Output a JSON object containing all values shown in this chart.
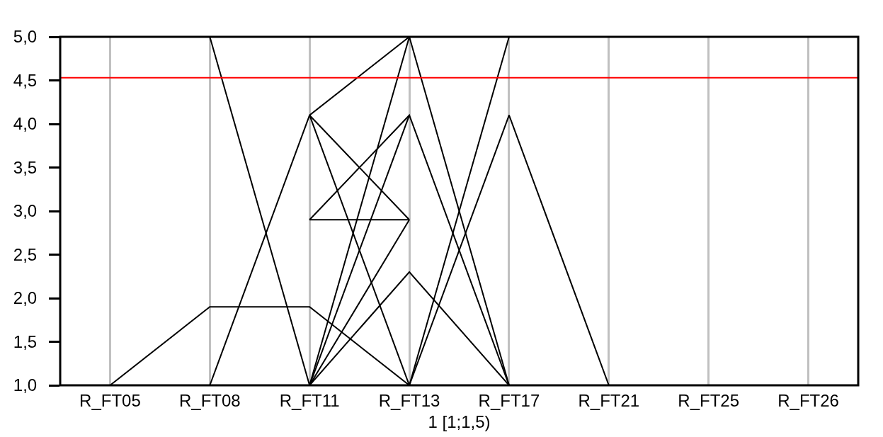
{
  "chart_data": {
    "type": "line",
    "categories": [
      "R_FT05",
      "R_FT08",
      "R_FT11",
      "R_FT13",
      "R_FT17",
      "R_FT21",
      "R_FT25",
      "R_FT26"
    ],
    "xlabel": "1 [1;1,5)",
    "series": [
      {
        "color": "#000000",
        "values": [
          1.0,
          1.9,
          1.9,
          1.0,
          5.0,
          null,
          null,
          null
        ]
      },
      {
        "color": "#000000",
        "values": [
          null,
          5.0,
          1.0,
          5.0,
          1.0,
          null,
          null,
          null
        ]
      },
      {
        "color": "#000000",
        "values": [
          null,
          1.0,
          4.1,
          5.0,
          null,
          null,
          null,
          null
        ]
      },
      {
        "color": "#000000",
        "values": [
          null,
          null,
          4.1,
          1.0,
          4.1,
          1.0,
          null,
          null
        ]
      },
      {
        "color": "#000000",
        "values": [
          null,
          null,
          4.1,
          2.9,
          null,
          null,
          null,
          null
        ]
      },
      {
        "color": "#000000",
        "values": [
          null,
          null,
          2.9,
          4.1,
          1.0,
          null,
          null,
          null
        ]
      },
      {
        "color": "#000000",
        "values": [
          null,
          null,
          2.9,
          2.9,
          null,
          null,
          null,
          null
        ]
      },
      {
        "color": "#000000",
        "values": [
          null,
          null,
          1.0,
          4.1,
          null,
          null,
          null,
          null
        ]
      },
      {
        "color": "#000000",
        "values": [
          null,
          null,
          1.0,
          2.9,
          null,
          null,
          null,
          null
        ]
      },
      {
        "color": "#000000",
        "values": [
          null,
          null,
          1.0,
          2.3,
          1.0,
          null,
          null,
          null
        ]
      }
    ],
    "ylim": [
      1.0,
      5.0
    ],
    "yticks": [
      {
        "value": 1.0,
        "label": "1,0"
      },
      {
        "value": 1.5,
        "label": "1,5"
      },
      {
        "value": 2.0,
        "label": "2,0"
      },
      {
        "value": 2.5,
        "label": "2,5"
      },
      {
        "value": 3.0,
        "label": "3,0"
      },
      {
        "value": 3.5,
        "label": "3,5"
      },
      {
        "value": 4.0,
        "label": "4,0"
      },
      {
        "value": 4.5,
        "label": "4,5"
      },
      {
        "value": 5.0,
        "label": "5,0"
      }
    ],
    "ref_lines": [
      {
        "axis": "y",
        "value": 4.53,
        "color": "#ff0000"
      }
    ],
    "grid": "x",
    "line_style": "solid"
  }
}
